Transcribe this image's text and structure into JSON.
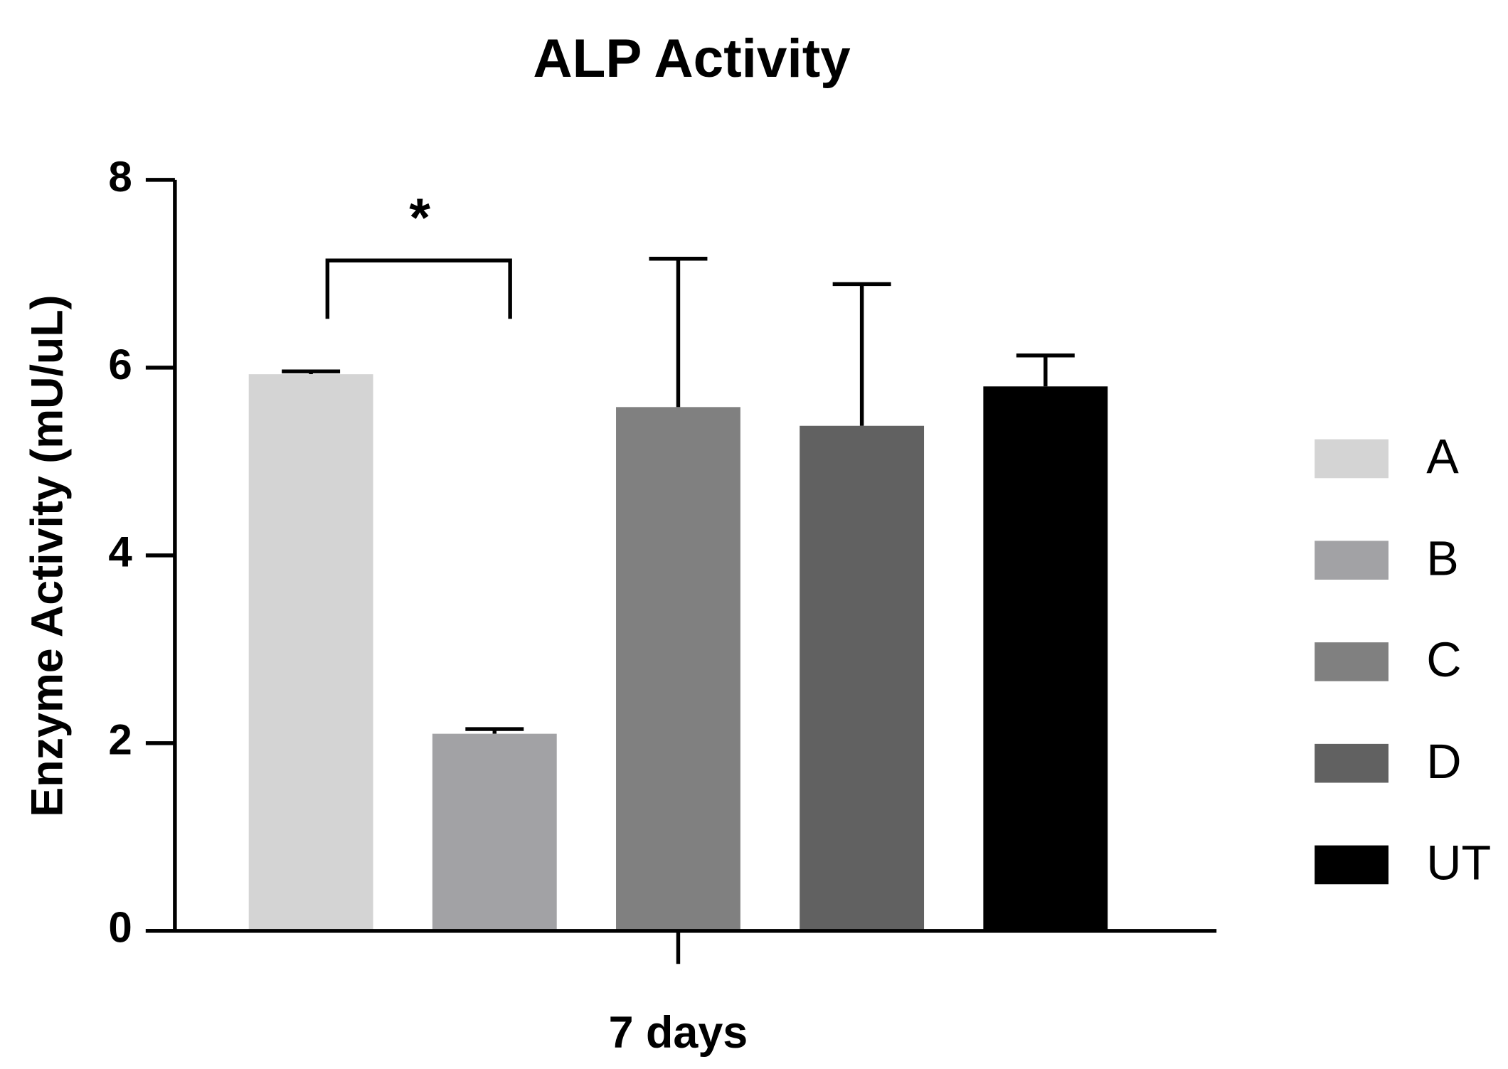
{
  "chart_data": {
    "type": "bar",
    "title": "ALP Activity",
    "y_label": "Enzyme Activity (mU/uL)",
    "categories": [
      "7 days"
    ],
    "series": [
      {
        "name": "A",
        "color": "#d4d4d4",
        "values": [
          5.93
        ],
        "errors": [
          0.03
        ]
      },
      {
        "name": "B",
        "color": "#a2a2a5",
        "values": [
          2.1
        ],
        "errors": [
          0.05
        ]
      },
      {
        "name": "C",
        "color": "#808080",
        "values": [
          5.58
        ],
        "errors": [
          1.58
        ]
      },
      {
        "name": "D",
        "color": "#616161",
        "values": [
          5.38
        ],
        "errors": [
          1.51
        ]
      },
      {
        "name": "UT",
        "color": "#000000",
        "values": [
          5.8
        ],
        "errors": [
          0.33
        ]
      }
    ],
    "annotation": "*",
    "ylim": [
      0,
      8
    ],
    "yticks": [
      0,
      2,
      4,
      6,
      8
    ],
    "grid": false,
    "legend": "right"
  }
}
